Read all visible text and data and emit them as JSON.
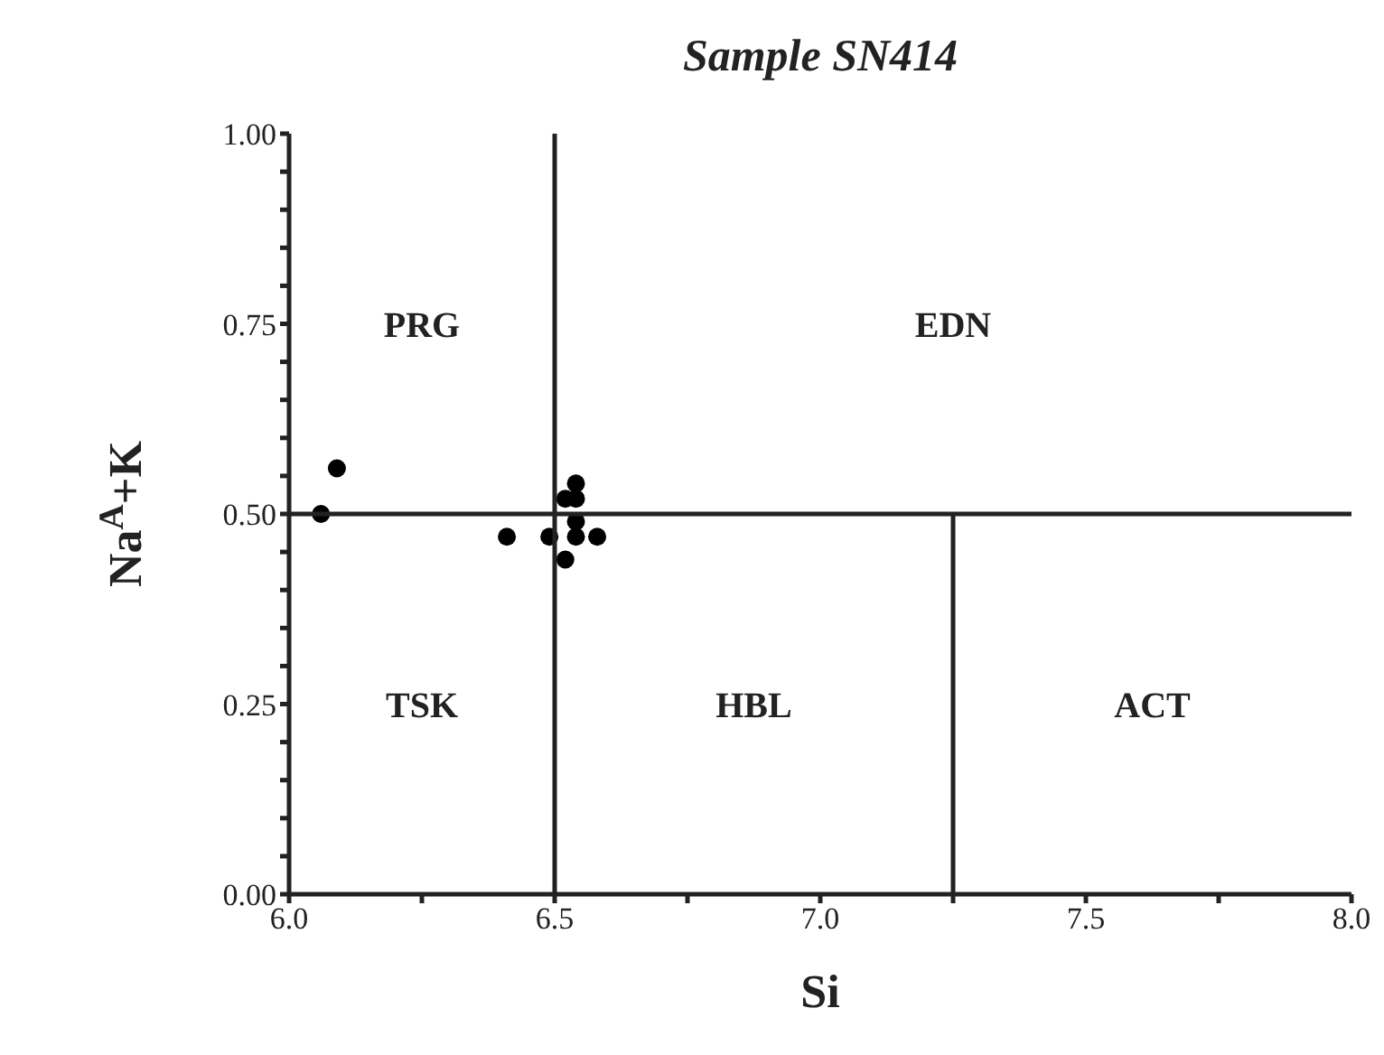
{
  "chart_data": {
    "type": "scatter",
    "title": "Sample SN414",
    "xlabel": "Si",
    "ylabel": "Na$^{A}$+K",
    "xlim": [
      6.0,
      8.0
    ],
    "ylim": [
      0.0,
      1.0
    ],
    "xticks": [
      {
        "value": 6.0,
        "label": "6.0"
      },
      {
        "value": 6.25,
        "label": null
      },
      {
        "value": 6.5,
        "label": "6.5"
      },
      {
        "value": 6.75,
        "label": null
      },
      {
        "value": 7.0,
        "label": "7.0"
      },
      {
        "value": 7.25,
        "label": null
      },
      {
        "value": 7.5,
        "label": "7.5"
      },
      {
        "value": 7.75,
        "label": null
      },
      {
        "value": 8.0,
        "label": "8.0"
      }
    ],
    "yticks": [
      {
        "value": 0,
        "label": "0.00"
      },
      {
        "value": 0.05,
        "label": null
      },
      {
        "value": 0.1,
        "label": null
      },
      {
        "value": 0.15,
        "label": null
      },
      {
        "value": 0.2,
        "label": null
      },
      {
        "value": 0.25,
        "label": "0.25"
      },
      {
        "value": 0.3,
        "label": null
      },
      {
        "value": 0.35,
        "label": null
      },
      {
        "value": 0.4,
        "label": null
      },
      {
        "value": 0.45,
        "label": null
      },
      {
        "value": 0.5,
        "label": "0.50"
      },
      {
        "value": 0.55,
        "label": null
      },
      {
        "value": 0.6,
        "label": null
      },
      {
        "value": 0.65,
        "label": null
      },
      {
        "value": 0.7,
        "label": null
      },
      {
        "value": 0.75,
        "label": "0.75"
      },
      {
        "value": 0.8,
        "label": null
      },
      {
        "value": 0.85,
        "label": null
      },
      {
        "value": 0.9,
        "label": null
      },
      {
        "value": 0.95,
        "label": null
      },
      {
        "value": 1.0,
        "label": "1.00"
      }
    ],
    "grid": false,
    "legend": false,
    "marker": "circle",
    "series": [
      {
        "color": "#000000",
        "x": [
          6.09,
          6.06,
          6.41,
          6.49,
          6.54,
          6.58,
          6.52,
          6.54,
          6.54,
          6.54,
          6.52
        ],
        "values": [
          0.56,
          0.5,
          0.47,
          0.47,
          0.54,
          0.47,
          0.52,
          0.52,
          0.49,
          0.47,
          0.44
        ]
      },
      {
        "type": "line",
        "color": "#222222",
        "marker": "none",
        "x": [
          6.5,
          6.5
        ],
        "values": [
          0.0,
          1.0
        ]
      },
      {
        "type": "line",
        "color": "#222222",
        "marker": "none",
        "x": [
          6.0,
          8.0
        ],
        "values": [
          0.5,
          0.5
        ]
      },
      {
        "type": "line",
        "color": "#222222",
        "marker": "none",
        "x": [
          7.25,
          7.25
        ],
        "values": [
          0.0,
          0.5
        ]
      }
    ],
    "annotations": [
      "PRG",
      "EDN",
      "TSK",
      "HBL",
      "ACT"
    ]
  }
}
